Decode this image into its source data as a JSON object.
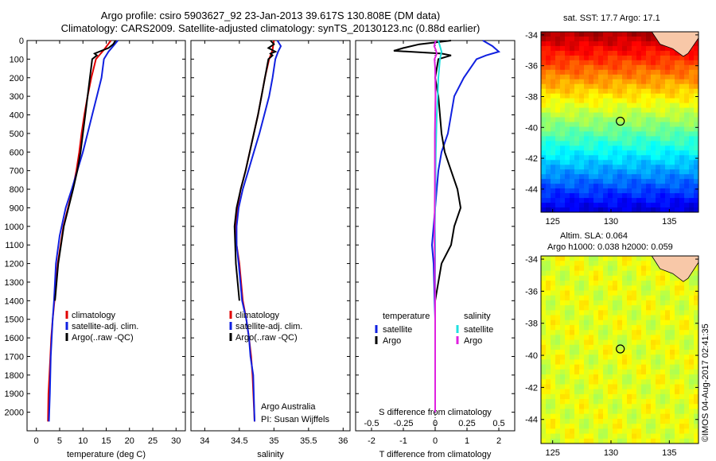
{
  "header": {
    "title_line1": "Argo profile: csiro 5903627_92 23-Jan-2013 39.617S 130.808E (DM data)",
    "title_line2": "Climatology: CARS2009. Satellite-adjusted climatology: synTS_20130123.nc (0.88d earlier)"
  },
  "credit": "©IMOS 04-Aug-2017 02:41:35",
  "colors": {
    "climatology": "#e00000",
    "satellite": "#1020e0",
    "argo": "#000000",
    "cyan": "#20e0e0",
    "magenta": "#e020e0"
  },
  "chart_data": [
    {
      "type": "line",
      "title": "",
      "xlabel": "temperature (deg C)",
      "ylabel": "",
      "xlim": [
        -2,
        32
      ],
      "ylim": [
        2100,
        0
      ],
      "xticks": [
        0,
        5,
        10,
        15,
        20,
        25,
        30
      ],
      "yticks": [
        0,
        100,
        200,
        300,
        400,
        500,
        600,
        700,
        800,
        900,
        1000,
        1100,
        1200,
        1300,
        1400,
        1500,
        1600,
        1700,
        1800,
        1900,
        2000
      ],
      "legend": [
        "climatology",
        "satellite-adj. clim.",
        "Argo(..raw -QC)"
      ],
      "legend_placement": "center-right",
      "series": [
        {
          "name": "climatology",
          "color": "#e00000",
          "x": [
            16.0,
            14.5,
            12.8,
            11.8,
            11.0,
            10.3,
            9.7,
            9.2,
            8.6,
            7.8,
            6.8,
            5.8,
            4.6,
            3.9,
            3.5,
            3.2,
            3.0,
            2.8,
            2.6,
            2.5
          ],
          "y": [
            0,
            50,
            100,
            200,
            300,
            400,
            500,
            600,
            700,
            800,
            900,
            1000,
            1200,
            1400,
            1500,
            1600,
            1700,
            1800,
            1900,
            2050
          ]
        },
        {
          "name": "satellite-adj. clim.",
          "color": "#1020e0",
          "x": [
            17.5,
            16.5,
            15.5,
            14.5,
            14.0,
            13.0,
            12.0,
            11.0,
            10.0,
            8.8,
            7.6,
            6.3,
            5.0,
            4.2,
            3.8,
            3.5,
            3.3,
            3.1,
            2.9,
            2.7
          ],
          "y": [
            0,
            30,
            60,
            100,
            200,
            300,
            400,
            500,
            600,
            700,
            800,
            900,
            1050,
            1200,
            1400,
            1500,
            1600,
            1700,
            1900,
            2050
          ]
        },
        {
          "name": "Argo(..raw -QC)",
          "color": "#000000",
          "x": [
            17.0,
            16.5,
            15.5,
            13.5,
            12.5,
            13.0,
            12.0,
            11.5,
            11.0,
            10.5,
            10.0,
            9.5,
            8.8,
            7.9,
            6.9,
            5.9,
            4.7,
            4.0
          ],
          "y": [
            0,
            20,
            40,
            60,
            70,
            80,
            100,
            200,
            300,
            400,
            500,
            600,
            700,
            800,
            900,
            1000,
            1200,
            1400
          ]
        }
      ]
    },
    {
      "type": "line",
      "title": "",
      "xlabel": "salinity",
      "ylabel": "",
      "xlim": [
        33.8,
        36.1
      ],
      "ylim": [
        2100,
        0
      ],
      "xticks": [
        34,
        34.5,
        35,
        35.5,
        36
      ],
      "xtick_labels": [
        "34",
        "34.5",
        "35",
        "35.5",
        "36"
      ],
      "legend": [
        "climatology",
        "satellite-adj. clim.",
        "Argo(..raw -QC)"
      ],
      "legend_placement": "center-right",
      "annotation": [
        "Argo Australia",
        "PI: Susan Wijffels"
      ],
      "series": [
        {
          "name": "climatology",
          "color": "#e00000",
          "x": [
            35.0,
            34.98,
            34.93,
            34.87,
            34.82,
            34.77,
            34.71,
            34.65,
            34.59,
            34.52,
            34.47,
            34.45,
            34.46,
            34.5,
            34.55,
            34.6,
            34.64,
            34.67,
            34.69,
            34.72
          ],
          "y": [
            0,
            50,
            100,
            200,
            300,
            400,
            500,
            600,
            700,
            800,
            900,
            1000,
            1100,
            1200,
            1400,
            1500,
            1600,
            1700,
            1800,
            2050
          ]
        },
        {
          "name": "satellite-adj. clim.",
          "color": "#1020e0",
          "x": [
            35.05,
            35.1,
            35.06,
            35.02,
            34.98,
            34.93,
            34.86,
            34.79,
            34.71,
            34.63,
            34.55,
            34.49,
            34.46,
            34.46,
            34.49,
            34.54,
            34.6,
            34.64,
            34.66,
            34.7,
            34.72
          ],
          "y": [
            0,
            30,
            60,
            100,
            200,
            300,
            400,
            500,
            600,
            700,
            800,
            900,
            1000,
            1100,
            1200,
            1400,
            1500,
            1600,
            1700,
            1800,
            2050
          ]
        },
        {
          "name": "Argo(..raw -QC)",
          "color": "#000000",
          "x": [
            34.95,
            35.0,
            34.92,
            35.02,
            34.95,
            34.98,
            34.92,
            34.87,
            34.82,
            34.77,
            34.71,
            34.65,
            34.59,
            34.52,
            34.46,
            34.43,
            34.45,
            34.5
          ],
          "y": [
            0,
            20,
            40,
            60,
            70,
            80,
            100,
            200,
            300,
            400,
            500,
            600,
            700,
            800,
            900,
            1000,
            1200,
            1400
          ]
        }
      ]
    },
    {
      "type": "line",
      "title": "",
      "xlabel": "T difference from climatology",
      "xlabel_top": "S difference from climatology",
      "ylabel": "",
      "xlim": [
        -2.5,
        2.5
      ],
      "ylim": [
        2100,
        0
      ],
      "xticks": [
        -2,
        -1,
        0,
        1,
        2
      ],
      "xticks_top": [
        "-0.5",
        "-0.25",
        "0",
        "0.25",
        "0.5"
      ],
      "legend_groups": {
        "temperature": [
          "satellite",
          "Argo"
        ],
        "salinity": [
          "satellite",
          "Argo"
        ]
      },
      "legend_placement": "center",
      "series": [
        {
          "name": "temperature satellite",
          "color": "#1020e0",
          "x": [
            1.5,
            1.8,
            2.0,
            1.6,
            1.3,
            0.9,
            0.6,
            0.5,
            0.4,
            0.2,
            0.1,
            0.05,
            -0.1,
            -0.05,
            0,
            0
          ],
          "y": [
            0,
            30,
            60,
            80,
            100,
            200,
            300,
            400,
            500,
            600,
            700,
            800,
            1100,
            1200,
            1500,
            2000
          ]
        },
        {
          "name": "temperature Argo",
          "color": "#000000",
          "x": [
            0.5,
            -0.5,
            -1.0,
            -1.3,
            0.2,
            0.5,
            0.1,
            0,
            0.1,
            0.2,
            0.3,
            0.7,
            0.8,
            0.6,
            0.5,
            0.2,
            0.1,
            0
          ],
          "y": [
            0,
            20,
            40,
            55,
            70,
            80,
            100,
            200,
            300,
            500,
            600,
            800,
            900,
            1000,
            1100,
            1200,
            1300,
            1400
          ]
        },
        {
          "name": "salinity satellite",
          "color": "#20e0e0",
          "x": [
            0.1,
            0.15,
            0.2,
            0.15,
            0.1,
            0.08,
            0.05,
            0.02,
            0.01,
            -0.01,
            0,
            0,
            0
          ],
          "y": [
            0,
            30,
            60,
            100,
            200,
            300,
            400,
            600,
            800,
            1000,
            1100,
            1500,
            2000
          ]
        },
        {
          "name": "salinity Argo",
          "color": "#e020e0",
          "x": [
            0.02,
            -0.03,
            0.02,
            0.05,
            -0.02,
            0,
            0.01,
            -0.01,
            -0.01,
            -0.02,
            -0.02,
            -0.01,
            -0.01,
            0,
            0
          ],
          "y": [
            0,
            30,
            50,
            70,
            100,
            150,
            300,
            500,
            800,
            1000,
            1100,
            1200,
            1300,
            1400,
            2000
          ]
        }
      ]
    },
    {
      "type": "heatmap",
      "title": "sat. SST: 17.7 Argo: 17.1",
      "xlim": [
        124,
        137.5
      ],
      "ylim": [
        -45.5,
        -33.8
      ],
      "xticks": [
        125,
        130,
        135
      ],
      "yticks": [
        -34,
        -36,
        -38,
        -40,
        -42,
        -44
      ],
      "marker": {
        "x": 130.8,
        "y": -39.6
      }
    },
    {
      "type": "heatmap",
      "title": "Altim. SLA: 0.064",
      "subtitle": "Argo h1000: 0.038 h2000: 0.059",
      "xlim": [
        124,
        137.5
      ],
      "ylim": [
        -45.5,
        -33.8
      ],
      "xticks": [
        125,
        130,
        135
      ],
      "yticks": [
        -34,
        -36,
        -38,
        -40,
        -42,
        -44
      ],
      "marker": {
        "x": 130.8,
        "y": -39.6
      }
    }
  ]
}
